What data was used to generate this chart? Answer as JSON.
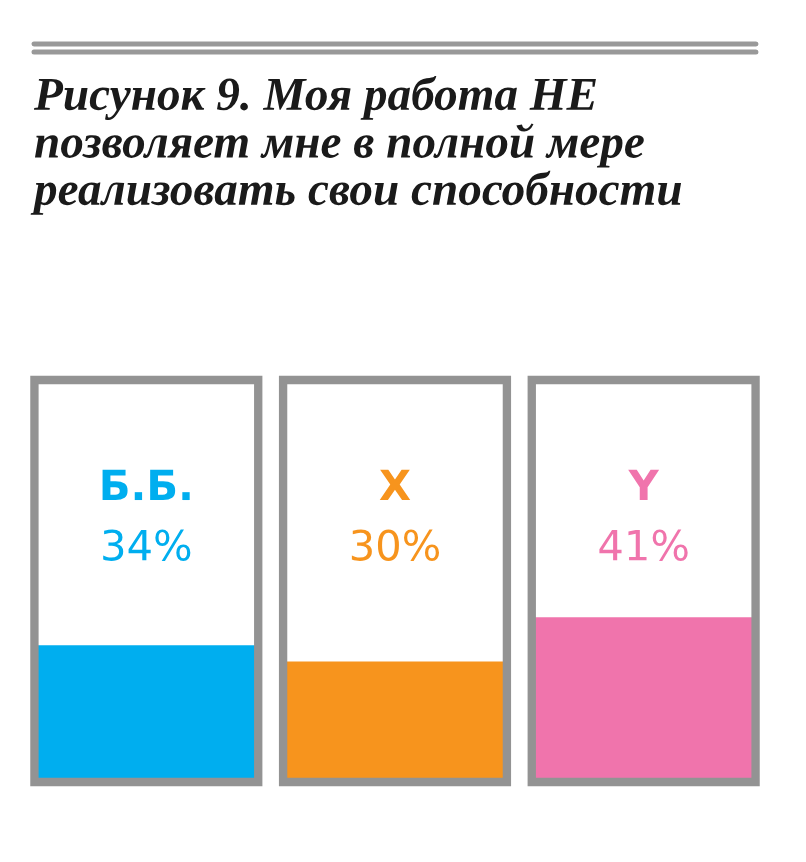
{
  "chart_data": {
    "type": "bar",
    "title": "Рисунок 9. Моя работа НЕ позволяет мне в полной мере реализовать свои способности",
    "categories": [
      "Б.Б.",
      "X",
      "Y"
    ],
    "values": [
      34,
      30,
      41
    ],
    "value_labels": [
      "34%",
      "30%",
      "41%"
    ],
    "colors": [
      "#00aeef",
      "#f7941d",
      "#f074ac"
    ],
    "ylim": [
      0,
      100
    ],
    "legend": false
  }
}
